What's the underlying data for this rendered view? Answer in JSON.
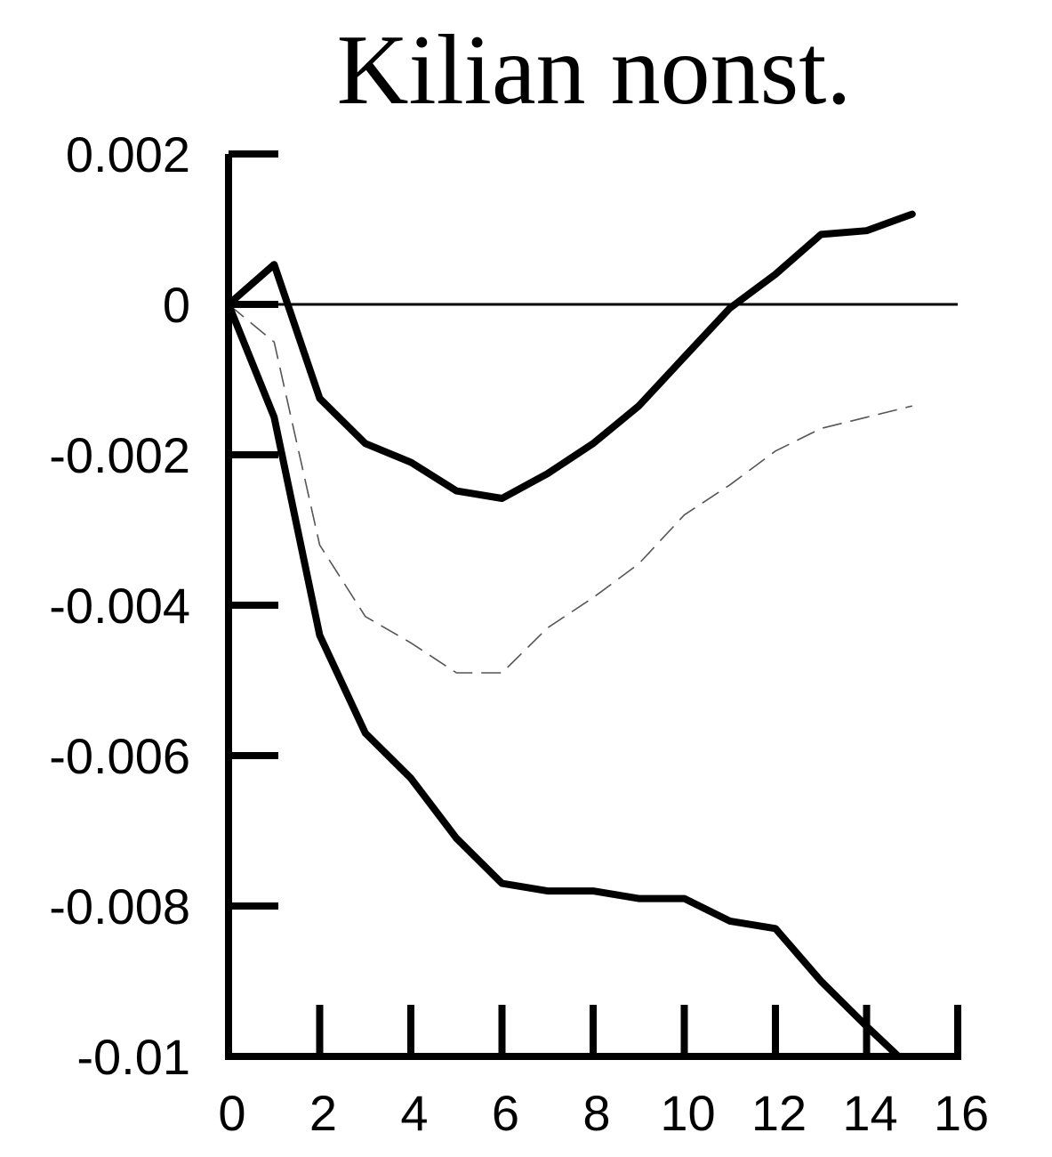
{
  "chart_data": {
    "type": "line",
    "title": "Kilian nonst.",
    "xlabel": "",
    "ylabel": "",
    "xlim": [
      0,
      16
    ],
    "ylim": [
      -0.01,
      0.002
    ],
    "x_ticks": [
      0,
      2,
      4,
      6,
      8,
      10,
      12,
      14,
      16
    ],
    "x_tick_labels": [
      "0",
      "2",
      "4",
      "6",
      "8",
      "10",
      "12",
      "14",
      "16"
    ],
    "y_ticks": [
      0.002,
      0,
      -0.002,
      -0.004,
      -0.006,
      -0.008,
      -0.01
    ],
    "y_tick_labels": [
      "0.002",
      "0",
      "-0.002",
      "-0.004",
      "-0.006",
      "-0.008",
      "-0.01"
    ],
    "grid": false,
    "zero_line": true,
    "series": [
      {
        "style": "solid-thick",
        "color": "#000000",
        "x": [
          0,
          1,
          2,
          3,
          4,
          5,
          6,
          7,
          8,
          9,
          10,
          11,
          12,
          13,
          14,
          15
        ],
        "values": [
          0,
          0.00053,
          -0.00125,
          -0.00185,
          -0.0021,
          -0.00248,
          -0.00258,
          -0.00225,
          -0.00185,
          -0.00135,
          -0.0007,
          -5e-05,
          0.0004,
          0.00093,
          0.00098,
          0.0012
        ]
      },
      {
        "style": "dashed-thin",
        "color": "#555555",
        "x": [
          0,
          1,
          2,
          3,
          4,
          5,
          6,
          7,
          8,
          9,
          10,
          11,
          12,
          13,
          14,
          15
        ],
        "values": [
          0,
          -0.0005,
          -0.0032,
          -0.00415,
          -0.0045,
          -0.0049,
          -0.0049,
          -0.0043,
          -0.0039,
          -0.00345,
          -0.0028,
          -0.0024,
          -0.00195,
          -0.00165,
          -0.0015,
          -0.00135
        ]
      },
      {
        "style": "solid-thick",
        "color": "#000000",
        "x": [
          0,
          1,
          2,
          3,
          4,
          5,
          6,
          7,
          8,
          9,
          10,
          11,
          12,
          13,
          14,
          14.7
        ],
        "values": [
          0,
          -0.0015,
          -0.0044,
          -0.0057,
          -0.0063,
          -0.0071,
          -0.0077,
          -0.0078,
          -0.0078,
          -0.0079,
          -0.0079,
          -0.0082,
          -0.0083,
          -0.009,
          -0.0096,
          -0.01
        ]
      }
    ]
  }
}
